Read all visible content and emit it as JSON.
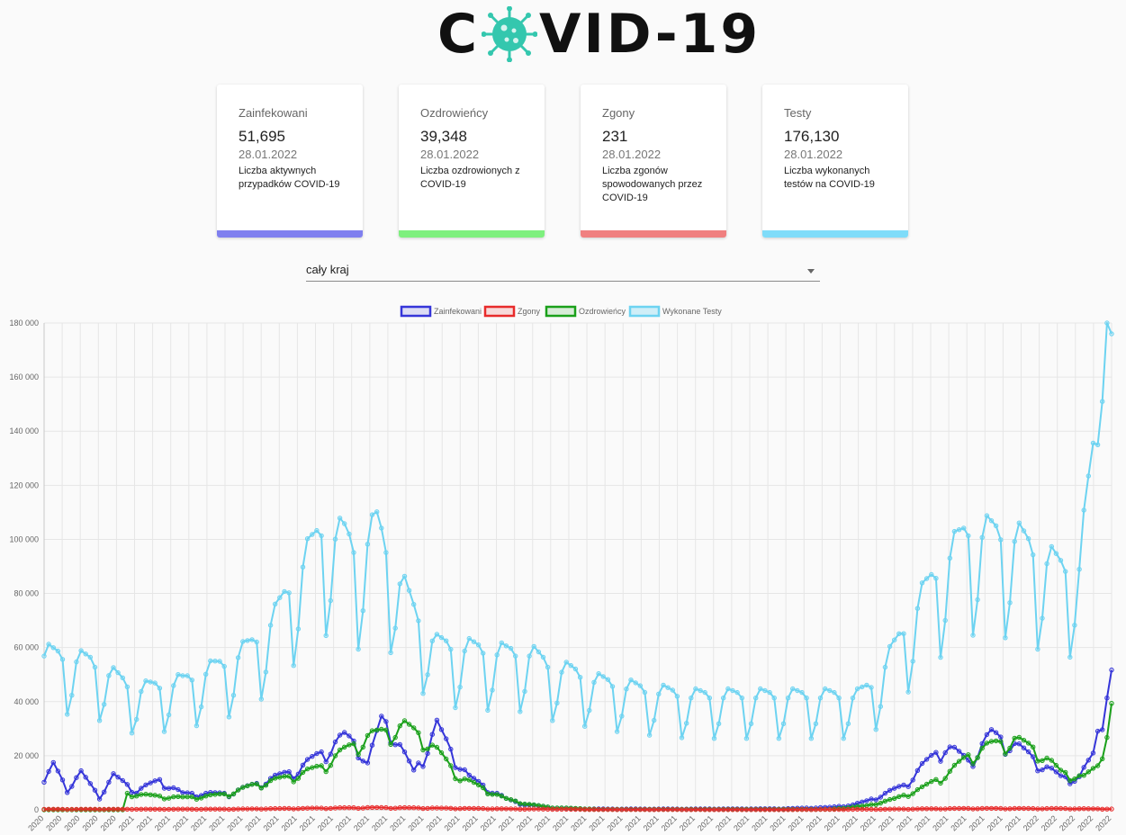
{
  "logo": {
    "left": "C",
    "right": "VID-19",
    "icon": "virus-icon"
  },
  "cards": [
    {
      "title": "Zainfekowani",
      "value": "51,695",
      "date": "28.01.2022",
      "desc": "Liczba aktywnych przypadków COVID-19",
      "color": "#7f7fef"
    },
    {
      "title": "Ozdrowieńcy",
      "value": "39,348",
      "date": "28.01.2022",
      "desc": "Liczba ozdrowionych z COVID-19",
      "color": "#7ef07e"
    },
    {
      "title": "Zgony",
      "value": "231",
      "date": "28.01.2022",
      "desc": "Liczba zgonów spowodowanych przez COVID-19",
      "color": "#f07f7f"
    },
    {
      "title": "Testy",
      "value": "176,130",
      "date": "28.01.2022",
      "desc": "Liczba wykonanych testów na COVID-19",
      "color": "#7fdcf9"
    }
  ],
  "region_select": {
    "value": "cały kraj"
  },
  "chart_data": {
    "type": "line",
    "ylim": [
      0,
      180000
    ],
    "yticks": [
      "0",
      "20 000",
      "40 000",
      "60 000",
      "80 000",
      "100 000",
      "120 000",
      "140 000",
      "160 000",
      "180 000"
    ],
    "x_labels": [
      "2020",
      "2020",
      "2020",
      "2020",
      "2020",
      "2021",
      "2021",
      "2021",
      "2021",
      "2021",
      "2021",
      "2021",
      "2021",
      "2021",
      "2021",
      "2021",
      "2021",
      "2021",
      "2021",
      "2021",
      "2021",
      "2021",
      "2021",
      "2021",
      "2021",
      "2021",
      "2021",
      "2021",
      "2021",
      "2021",
      "2021",
      "2021",
      "2021",
      "2021",
      "2021",
      "2021",
      "2021",
      "2021",
      "2021",
      "2021",
      "2021",
      "2021",
      "2021",
      "2021",
      "2021",
      "2021",
      "2021",
      "2021",
      "2021",
      "2021",
      "2021",
      "2021",
      "2021",
      "2021",
      "2021",
      "2022",
      "2022",
      "2022",
      "2022",
      "2022"
    ],
    "grid": true,
    "legend_position": "top",
    "n_points": 232,
    "series": [
      {
        "name": "Zainfekowani",
        "color": "#3535d9",
        "fill": "rgba(53,53,217,0.15)",
        "anchors": [
          [
            0,
            10000
          ],
          [
            2,
            16500
          ],
          [
            5,
            8000
          ],
          [
            8,
            13500
          ],
          [
            12,
            5000
          ],
          [
            15,
            12500
          ],
          [
            20,
            7000
          ],
          [
            25,
            11000
          ],
          [
            30,
            6000
          ],
          [
            40,
            6000
          ],
          [
            45,
            9000
          ],
          [
            50,
            12000
          ],
          [
            55,
            15000
          ],
          [
            60,
            21000
          ],
          [
            65,
            27000
          ],
          [
            68,
            24000
          ],
          [
            70,
            17000
          ],
          [
            73,
            33000
          ],
          [
            75,
            31000
          ],
          [
            78,
            20000
          ],
          [
            80,
            14000
          ],
          [
            82,
            20000
          ],
          [
            85,
            31000
          ],
          [
            88,
            22000
          ],
          [
            92,
            12000
          ],
          [
            96,
            8000
          ],
          [
            100,
            4000
          ],
          [
            104,
            2000
          ],
          [
            110,
            800
          ],
          [
            115,
            400
          ],
          [
            120,
            300
          ],
          [
            140,
            300
          ],
          [
            160,
            400
          ],
          [
            170,
            900
          ],
          [
            175,
            1800
          ],
          [
            178,
            3200
          ],
          [
            182,
            6000
          ],
          [
            186,
            9000
          ],
          [
            190,
            16000
          ],
          [
            195,
            24000
          ],
          [
            200,
            18000
          ],
          [
            205,
            28000
          ],
          [
            210,
            24000
          ],
          [
            215,
            18000
          ],
          [
            220,
            12000
          ],
          [
            224,
            12000
          ],
          [
            227,
            20000
          ],
          [
            229,
            37000
          ],
          [
            231,
            57000
          ]
        ],
        "amp": 0.2,
        "period": 7
      },
      {
        "name": "Zgony",
        "color": "#e82b2b",
        "fill": "rgba(232,43,43,0.15)",
        "anchors": [
          [
            0,
            200
          ],
          [
            40,
            250
          ],
          [
            60,
            600
          ],
          [
            70,
            800
          ],
          [
            80,
            700
          ],
          [
            100,
            350
          ],
          [
            120,
            100
          ],
          [
            160,
            60
          ],
          [
            180,
            200
          ],
          [
            200,
            500
          ],
          [
            220,
            450
          ],
          [
            231,
            300
          ]
        ],
        "amp": 0.3,
        "period": 7
      },
      {
        "name": "Ozdrowieńcy",
        "color": "#1aa01a",
        "fill": "rgba(26,160,26,0.15)",
        "anchors": [
          [
            0,
            0
          ],
          [
            17,
            0
          ],
          [
            18,
            6000
          ],
          [
            25,
            5000
          ],
          [
            30,
            4500
          ],
          [
            35,
            5000
          ],
          [
            40,
            6000
          ],
          [
            45,
            9000
          ],
          [
            50,
            11000
          ],
          [
            55,
            13000
          ],
          [
            60,
            16000
          ],
          [
            65,
            22000
          ],
          [
            70,
            27000
          ],
          [
            74,
            29000
          ],
          [
            78,
            31000
          ],
          [
            82,
            27000
          ],
          [
            86,
            20000
          ],
          [
            90,
            12000
          ],
          [
            95,
            8000
          ],
          [
            100,
            4000
          ],
          [
            105,
            2000
          ],
          [
            110,
            800
          ],
          [
            120,
            200
          ],
          [
            170,
            200
          ],
          [
            178,
            1500
          ],
          [
            184,
            4000
          ],
          [
            190,
            8000
          ],
          [
            196,
            14000
          ],
          [
            200,
            20000
          ],
          [
            205,
            24000
          ],
          [
            210,
            26000
          ],
          [
            215,
            22000
          ],
          [
            220,
            14000
          ],
          [
            225,
            12000
          ],
          [
            228,
            16000
          ],
          [
            230,
            30000
          ],
          [
            231,
            39500
          ]
        ],
        "amp": 0.18,
        "period": 7
      },
      {
        "name": "Wykonane Testy",
        "color": "#6dd3f1",
        "fill": "rgba(109,211,241,0.3)",
        "anchors": [
          [
            0,
            55000
          ],
          [
            10,
            52000
          ],
          [
            20,
            42000
          ],
          [
            30,
            45000
          ],
          [
            40,
            52000
          ],
          [
            45,
            58000
          ],
          [
            50,
            68000
          ],
          [
            55,
            84000
          ],
          [
            60,
            98000
          ],
          [
            65,
            96000
          ],
          [
            68,
            90000
          ],
          [
            72,
            100000
          ],
          [
            75,
            88000
          ],
          [
            80,
            70000
          ],
          [
            85,
            58000
          ],
          [
            90,
            57000
          ],
          [
            95,
            56000
          ],
          [
            100,
            55000
          ],
          [
            105,
            55000
          ],
          [
            110,
            50000
          ],
          [
            115,
            48000
          ],
          [
            120,
            45000
          ],
          [
            130,
            42000
          ],
          [
            140,
            40000
          ],
          [
            150,
            40000
          ],
          [
            160,
            40000
          ],
          [
            170,
            40000
          ],
          [
            176,
            40000
          ],
          [
            180,
            45000
          ],
          [
            185,
            60000
          ],
          [
            190,
            75000
          ],
          [
            195,
            88000
          ],
          [
            200,
            98000
          ],
          [
            205,
            97000
          ],
          [
            210,
            96000
          ],
          [
            215,
            90000
          ],
          [
            220,
            85000
          ],
          [
            224,
            86000
          ],
          [
            227,
            125000
          ],
          [
            229,
            145000
          ],
          [
            231,
            178000
          ]
        ],
        "amp": 0.34,
        "period": 7
      }
    ]
  }
}
